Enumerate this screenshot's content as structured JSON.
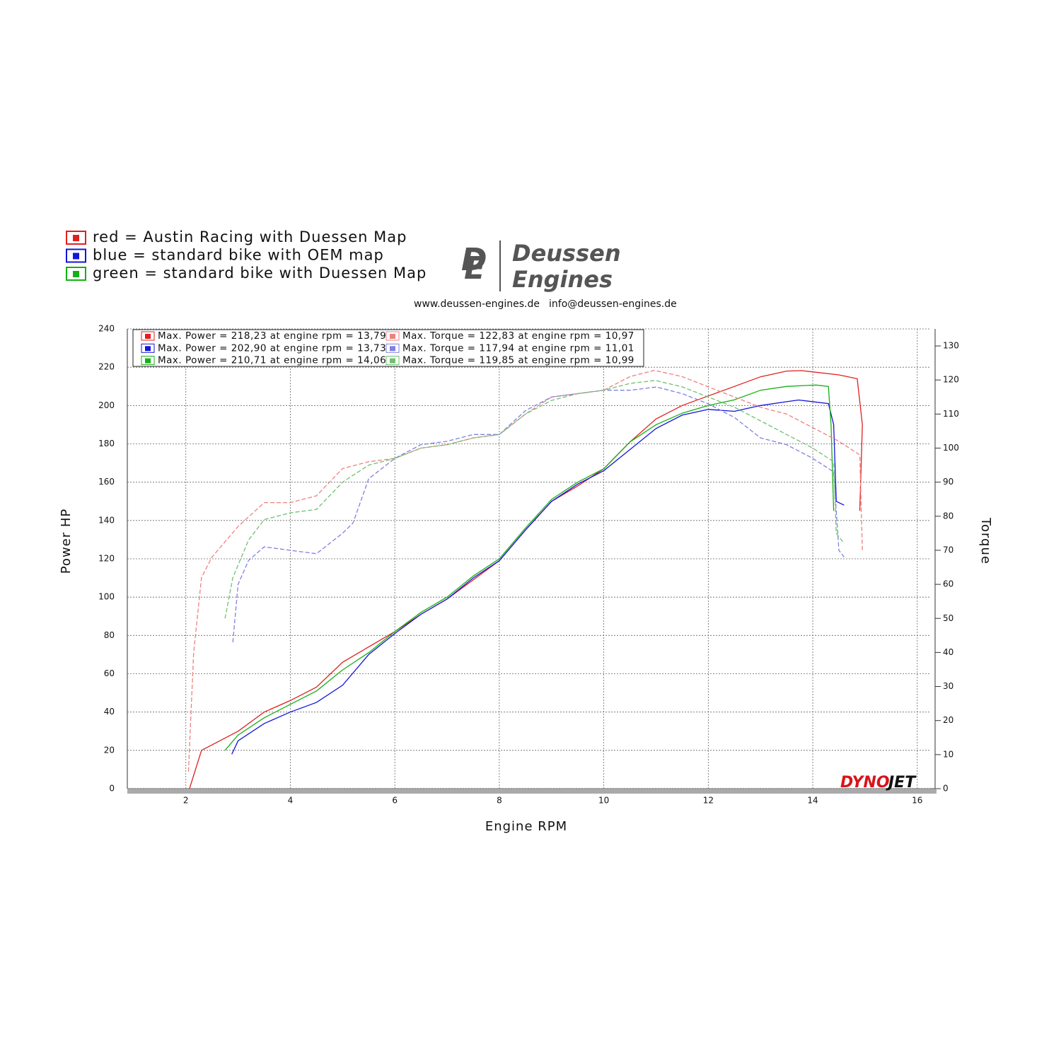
{
  "chart_data": {
    "type": "line",
    "notes": [
      {
        "text": "red = Austin Racing with Duessen Map",
        "color": "#e0201e"
      },
      {
        "text": "blue = standard bike with OEM map",
        "color": "#1414d8"
      },
      {
        "text": "green = standard bike with Duessen Map",
        "color": "#14b014"
      }
    ],
    "logo": {
      "mark": [
        "D",
        "E"
      ],
      "name": [
        "Deussen",
        "Engines"
      ]
    },
    "links": [
      "www.deussen-engines.de",
      "info@deussen-engines.de"
    ],
    "dynojet": [
      "DYNO",
      "JET"
    ],
    "xlabel": "Engine RPM",
    "ylabel": "Power HP",
    "y2label": "Torque",
    "xlim": [
      0.88,
      16.26
    ],
    "xticks": [
      2,
      4,
      6,
      8,
      10,
      12,
      14,
      16
    ],
    "ylim": [
      0,
      240
    ],
    "yticks": [
      0,
      20,
      40,
      60,
      80,
      100,
      120,
      140,
      160,
      180,
      200,
      220,
      240
    ],
    "y2lim": [
      0,
      135
    ],
    "y2ticks": [
      0,
      10,
      20,
      30,
      40,
      50,
      60,
      70,
      80,
      90,
      100,
      110,
      120,
      130
    ],
    "grid": true,
    "series": [
      {
        "name": "Max. Power = 218,23 at engine rpm = 13,79",
        "color": "#e0201e",
        "dash": false,
        "x": [
          2.07,
          2.3,
          3,
          3.5,
          4,
          4.5,
          5,
          5.5,
          6,
          6.5,
          7,
          7.5,
          8,
          8.5,
          9,
          9.5,
          10,
          10.5,
          11,
          11.5,
          12,
          12.5,
          13,
          13.5,
          13.79,
          14.5,
          14.85,
          14.95,
          14.9
        ],
        "values": [
          0,
          20,
          30,
          40,
          46,
          53,
          66,
          74,
          82,
          91,
          99,
          109,
          119,
          135,
          150,
          158,
          167,
          181,
          193,
          200,
          205,
          210,
          215,
          218,
          218.23,
          216,
          214,
          190,
          145
        ]
      },
      {
        "name": "Max. Power = 202,90 at engine rpm = 13,73",
        "color": "#1414d8",
        "dash": false,
        "x": [
          2.88,
          3,
          3.5,
          4,
          4.5,
          5,
          5.5,
          6,
          6.5,
          7,
          7.5,
          8,
          8.5,
          9,
          9.5,
          10,
          10.5,
          11,
          11.5,
          12,
          12.5,
          13,
          13.5,
          13.73,
          14.3,
          14.4,
          14.45,
          14.6
        ],
        "values": [
          18,
          25,
          34,
          40,
          45,
          54,
          70,
          81,
          91,
          99,
          110,
          119,
          135,
          150,
          159,
          166,
          177,
          188,
          195,
          198,
          197,
          200,
          202,
          202.9,
          201,
          190,
          150,
          148
        ]
      },
      {
        "name": "Max. Power = 210,71 at engine rpm = 14,06",
        "color": "#14b014",
        "dash": false,
        "x": [
          2.75,
          3,
          3.5,
          4,
          4.5,
          5,
          5.5,
          6,
          6.5,
          7,
          7.5,
          8,
          8.5,
          9,
          9.5,
          10,
          10.5,
          11,
          11.5,
          12,
          12.5,
          13,
          13.5,
          14.06,
          14.3,
          14.35,
          14.4
        ],
        "values": [
          20,
          28,
          37,
          44,
          51,
          62,
          71,
          82,
          92,
          100,
          111,
          120,
          136,
          151,
          160,
          167,
          181,
          190,
          196,
          200,
          203,
          208,
          210,
          210.71,
          210,
          190,
          145
        ]
      },
      {
        "name": "Max. Torque = 122,83 at engine rpm = 10,97",
        "color": "#f08080",
        "dash": true,
        "axis": "y2",
        "x": [
          2.05,
          2.15,
          2.3,
          2.5,
          3,
          3.5,
          4,
          4.5,
          5,
          5.5,
          6,
          6.5,
          7,
          7.5,
          8,
          8.5,
          9,
          9.5,
          10,
          10.5,
          10.97,
          11.5,
          12,
          12.5,
          13,
          13.5,
          14,
          14.5,
          14.9,
          14.95
        ],
        "values": [
          5,
          40,
          62,
          68,
          77,
          84,
          84,
          86,
          94,
          96,
          97,
          100,
          101,
          103,
          104,
          110,
          115,
          116,
          117,
          121,
          122.83,
          121,
          118,
          115,
          112,
          110,
          106,
          102,
          98,
          70
        ]
      },
      {
        "name": "Max. Torque = 117,94 at engine rpm = 11,01",
        "color": "#8080e0",
        "dash": true,
        "axis": "y2",
        "x": [
          2.9,
          3,
          3.2,
          3.5,
          4,
          4.5,
          5,
          5.2,
          5.5,
          6,
          6.5,
          7,
          7.5,
          8,
          8.5,
          9,
          9.5,
          10,
          10.5,
          11.01,
          11.5,
          12,
          12.5,
          13,
          13.5,
          14,
          14.4,
          14.5,
          14.6
        ],
        "values": [
          43,
          60,
          67,
          71,
          70,
          69,
          75,
          78,
          91,
          97,
          101,
          102,
          104,
          104,
          111,
          115,
          116,
          117,
          117,
          117.94,
          116,
          113,
          109,
          103,
          101,
          97,
          93,
          70,
          68
        ]
      },
      {
        "name": "Max. Torque = 119,85 at engine rpm = 10,99",
        "color": "#70c070",
        "dash": true,
        "axis": "y2",
        "x": [
          2.75,
          2.9,
          3.2,
          3.5,
          4,
          4.5,
          5,
          5.5,
          6,
          6.5,
          7,
          7.5,
          8,
          8.5,
          9,
          9.5,
          10,
          10.5,
          10.99,
          11.5,
          12,
          12.5,
          13,
          13.5,
          14,
          14.4,
          14.45,
          14.6
        ],
        "values": [
          50,
          62,
          73,
          79,
          81,
          82,
          90,
          95,
          97,
          100,
          101,
          103,
          104,
          110,
          114,
          116,
          117,
          119,
          119.85,
          118,
          115,
          112,
          108,
          104,
          100,
          96,
          75,
          72
        ]
      }
    ]
  }
}
